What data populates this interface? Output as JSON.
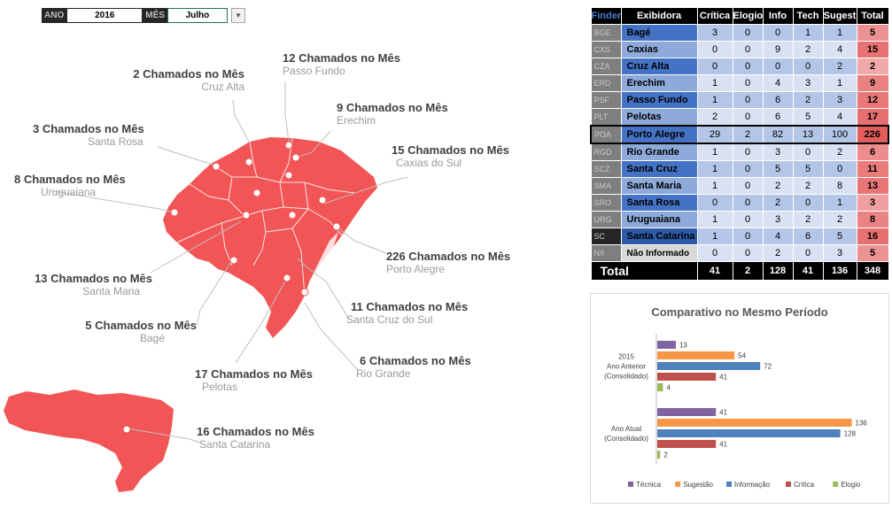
{
  "filters": {
    "ano_label": "ANO",
    "ano_value": "2016",
    "mes_label": "MÊS",
    "mes_value": "Julho"
  },
  "map_labels": [
    {
      "count": "2 Chamados no Mês",
      "name": "Cruz Alta"
    },
    {
      "count": "12 Chamados no Mês",
      "name": "Passo Fundo"
    },
    {
      "count": "9 Chamados no Mês",
      "name": "Erechim"
    },
    {
      "count": "3 Chamados no Mês",
      "name": "Santa Rosa"
    },
    {
      "count": "15 Chamados no Mês",
      "name": "Caxias do Sul"
    },
    {
      "count": "8 Chamados no Mês",
      "name": "Uruguaiana"
    },
    {
      "count": "226 Chamados no Mês",
      "name": "Porto Alegre"
    },
    {
      "count": "13 Chamados no Mês",
      "name": "Santa Maria"
    },
    {
      "count": "11 Chamados no Mês",
      "name": "Santa Cruz do Sul"
    },
    {
      "count": "5 Chamados no Mês",
      "name": "Bagé"
    },
    {
      "count": "6 Chamados no Mês",
      "name": "Rio Grande"
    },
    {
      "count": "17 Chamados no Mês",
      "name": "Pelotas"
    },
    {
      "count": "16 Chamados no Mês",
      "name": "Santa Catarina"
    }
  ],
  "table": {
    "headers": [
      "Finder",
      "Exibidora",
      "Crítica",
      "Elogio",
      "Info",
      "Tech",
      "Sugest",
      "Total"
    ],
    "rows": [
      {
        "code": "BGE",
        "name": "Bagé",
        "critica": "3",
        "elogio": "0",
        "info": "0",
        "tech": "1",
        "sugest": "1",
        "total": "5"
      },
      {
        "code": "CXS",
        "name": "Caxias",
        "critica": "0",
        "elogio": "0",
        "info": "9",
        "tech": "2",
        "sugest": "4",
        "total": "15"
      },
      {
        "code": "CZA",
        "name": "Cruz Alta",
        "critica": "0",
        "elogio": "0",
        "info": "0",
        "tech": "0",
        "sugest": "2",
        "total": "2"
      },
      {
        "code": "ERD",
        "name": "Erechim",
        "critica": "1",
        "elogio": "0",
        "info": "4",
        "tech": "3",
        "sugest": "1",
        "total": "9"
      },
      {
        "code": "PSF",
        "name": "Passo Fundo",
        "critica": "1",
        "elogio": "0",
        "info": "6",
        "tech": "2",
        "sugest": "3",
        "total": "12"
      },
      {
        "code": "PLT",
        "name": "Pelotas",
        "critica": "2",
        "elogio": "0",
        "info": "6",
        "tech": "5",
        "sugest": "4",
        "total": "17"
      },
      {
        "code": "POA",
        "name": "Porto Alegre",
        "critica": "29",
        "elogio": "2",
        "info": "82",
        "tech": "13",
        "sugest": "100",
        "total": "226"
      },
      {
        "code": "RGD",
        "name": "Rio Grande",
        "critica": "1",
        "elogio": "0",
        "info": "3",
        "tech": "0",
        "sugest": "2",
        "total": "6"
      },
      {
        "code": "SCZ",
        "name": "Santa Cruz",
        "critica": "1",
        "elogio": "0",
        "info": "5",
        "tech": "5",
        "sugest": "0",
        "total": "11"
      },
      {
        "code": "SMA",
        "name": "Santa Maria",
        "critica": "1",
        "elogio": "0",
        "info": "2",
        "tech": "2",
        "sugest": "8",
        "total": "13"
      },
      {
        "code": "SRO",
        "name": "Santa Rosa",
        "critica": "0",
        "elogio": "0",
        "info": "2",
        "tech": "0",
        "sugest": "1",
        "total": "3"
      },
      {
        "code": "URG",
        "name": "Uruguaiana",
        "critica": "1",
        "elogio": "0",
        "info": "3",
        "tech": "2",
        "sugest": "2",
        "total": "8"
      },
      {
        "code": "SC",
        "name": "Santa Catarina",
        "critica": "1",
        "elogio": "0",
        "info": "4",
        "tech": "6",
        "sugest": "5",
        "total": "16"
      },
      {
        "code": "N/I",
        "name": "Não Informado",
        "critica": "0",
        "elogio": "0",
        "info": "2",
        "tech": "0",
        "sugest": "3",
        "total": "5"
      }
    ],
    "footer": {
      "label": "Total",
      "critica": "41",
      "elogio": "2",
      "info": "128",
      "tech": "41",
      "sugest": "136",
      "total": "348"
    }
  },
  "colors": {
    "map_fill": "#f25555",
    "table_header_bg": "#000000",
    "name_blue": "#4472c4",
    "value_blue_light": "#d9e1f2",
    "value_blue_mid": "#b4c6e7",
    "total_high": "#e35d5d",
    "total_low": "#f8cccc"
  },
  "chart_data": {
    "type": "bar",
    "title": "Comparativo no Mesmo Período",
    "orientation": "horizontal",
    "categories": [
      [
        "2015",
        "Ano Anterior",
        "(Consolidado)"
      ],
      [
        "Ano Atual",
        "(Consolidado)"
      ]
    ],
    "series": [
      {
        "name": "Técnica",
        "color": "#8064a2",
        "values": [
          13,
          41
        ]
      },
      {
        "name": "Sugestão",
        "color": "#f79646",
        "values": [
          54,
          136
        ]
      },
      {
        "name": "Informação",
        "color": "#4f81bd",
        "values": [
          72,
          128
        ]
      },
      {
        "name": "Crítica",
        "color": "#c0504d",
        "values": [
          41,
          41
        ]
      },
      {
        "name": "Elogio",
        "color": "#9bbb59",
        "values": [
          4,
          2
        ]
      }
    ],
    "legend": "bottom",
    "grid": false
  }
}
